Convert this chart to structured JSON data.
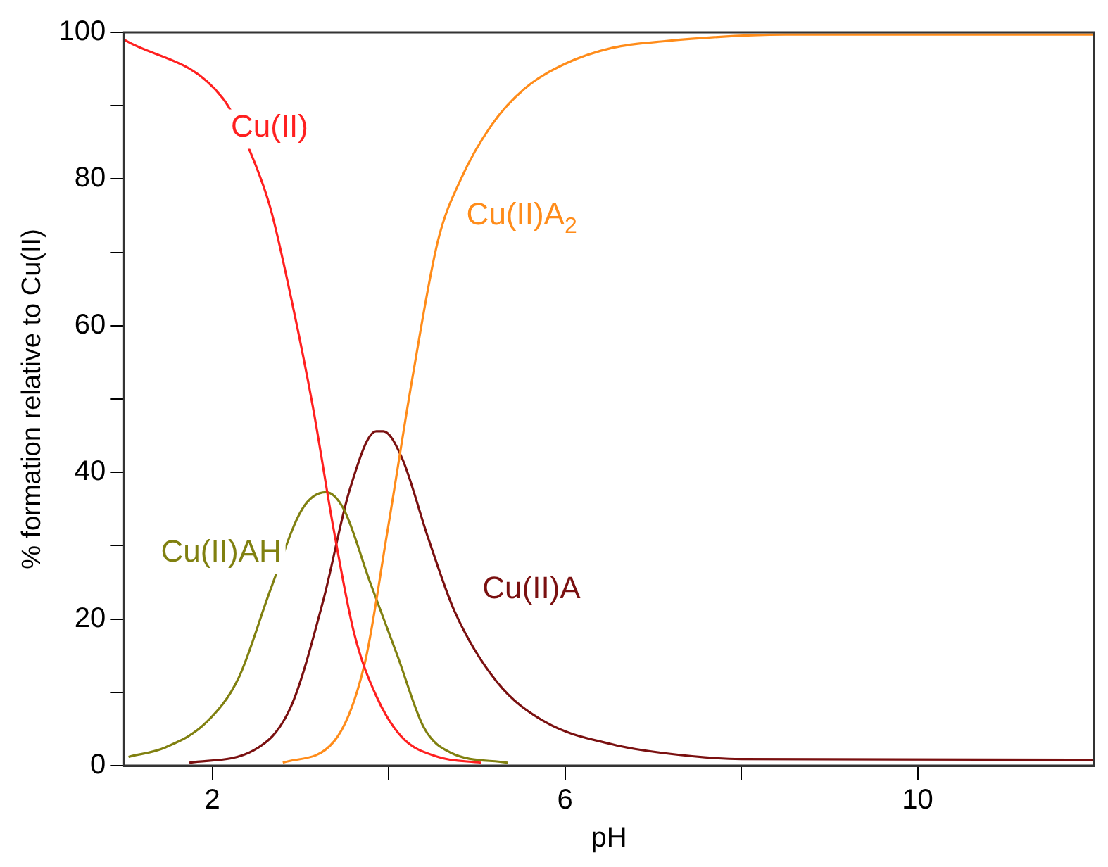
{
  "chart_data": {
    "type": "line",
    "xlabel": "pH",
    "ylabel": "% formation relative to Cu(II)",
    "xlim": [
      1,
      12
    ],
    "xticks": [
      2,
      {
        "value": 4,
        "label": null
      },
      6,
      {
        "value": 8,
        "label": null
      },
      10
    ],
    "ylim": [
      0,
      100
    ],
    "yticks": [
      0,
      {
        "value": 10,
        "label": null
      },
      20,
      {
        "value": 30,
        "label": null
      },
      40,
      {
        "value": 50,
        "label": null
      },
      60,
      {
        "value": 70,
        "label": null
      },
      80,
      {
        "value": 90,
        "label": null
      },
      100
    ],
    "grid": false,
    "legend": false,
    "marker": "none",
    "line_style": "solid",
    "series": [
      {
        "name": "Cu(II)",
        "color": "#ff2020",
        "x": [
          1.0,
          2.12,
          2.42,
          2.66,
          2.89,
          3.14,
          3.38,
          3.61,
          3.86,
          4.15,
          4.56,
          5.05
        ],
        "values": [
          99,
          91,
          84,
          76,
          64,
          49,
          32,
          18,
          9.5,
          3.9,
          1.2,
          0.4
        ]
      },
      {
        "name": "Cu(II)A$_{2}$",
        "color": "#ff8c1a",
        "x": [
          2.8,
          3.38,
          3.73,
          3.98,
          4.28,
          4.56,
          4.82,
          5.17,
          5.54,
          6.0,
          6.54,
          7.13,
          8.5,
          12
        ],
        "values": [
          0.4,
          3.3,
          14,
          31.5,
          53.6,
          71.6,
          80,
          87.4,
          92.3,
          95.7,
          97.9,
          98.8,
          99.7,
          99.7
        ]
      },
      {
        "name": "Cu(II)AH",
        "color": "#808010",
        "x": [
          1.05,
          1.47,
          1.94,
          2.3,
          2.66,
          3.02,
          3.29,
          3.49,
          3.79,
          4.1,
          4.4,
          4.7,
          5.35
        ],
        "values": [
          1.2,
          2.5,
          6,
          12,
          24,
          35,
          37.3,
          35,
          25,
          15,
          5.2,
          1.8,
          0.4
        ]
      },
      {
        "name": "Cu(II)A",
        "color": "#7a1010",
        "x": [
          1.74,
          2.47,
          2.89,
          3.26,
          3.56,
          3.86,
          3.94,
          4.15,
          4.45,
          4.75,
          5.23,
          5.77,
          6.54,
          7.13,
          8.0,
          12
        ],
        "values": [
          0.4,
          2.1,
          8,
          22.6,
          37.7,
          45.6,
          45.6,
          42,
          31,
          21,
          11.4,
          6,
          2.9,
          1.7,
          0.9,
          0.8
        ]
      }
    ]
  }
}
